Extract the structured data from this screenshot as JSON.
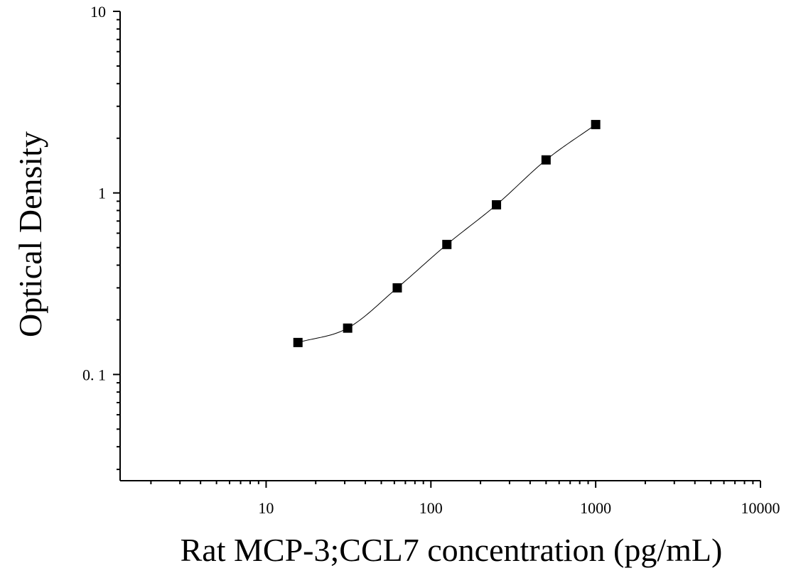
{
  "chart_data": {
    "type": "scatter",
    "xlabel": "Rat MCP-3;CCL7 concentration (pg/mL)",
    "ylabel": "Optical Density",
    "xscale": "log",
    "yscale": "log",
    "xlim": [
      1.3,
      10000
    ],
    "ylim": [
      0.026,
      10
    ],
    "x_ticks": [
      10,
      100,
      1000,
      10000
    ],
    "x_tick_labels": [
      "10",
      "100",
      "1000",
      "10000"
    ],
    "y_ticks": [
      0.1,
      1,
      10
    ],
    "y_tick_labels": [
      "0. 1",
      "1",
      "10"
    ],
    "grid": false,
    "legend": false,
    "series": [
      {
        "x": [
          15.6,
          31.25,
          62.5,
          125,
          250,
          500,
          1000
        ],
        "y": [
          0.15,
          0.18,
          0.3,
          0.52,
          0.86,
          1.52,
          2.38
        ],
        "marker": "square",
        "fit_curve": true
      }
    ]
  }
}
